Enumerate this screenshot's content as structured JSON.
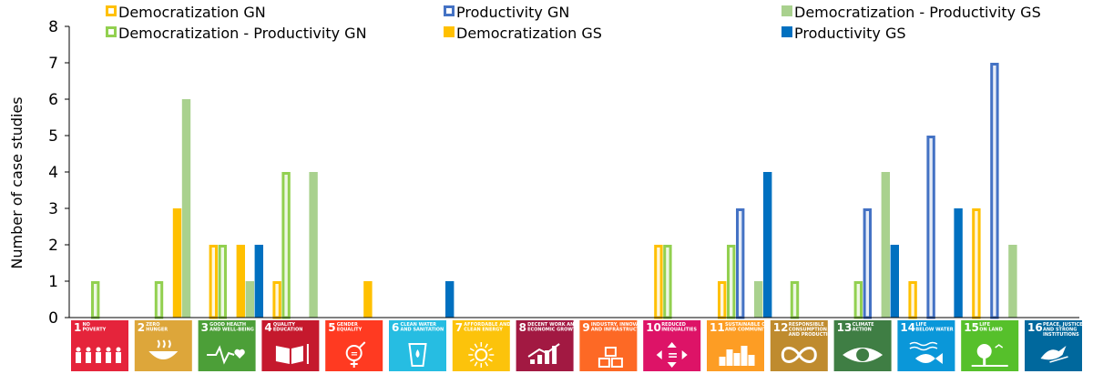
{
  "chart_data": {
    "type": "bar",
    "ylabel": "Number of case studies",
    "ylim": [
      0,
      8
    ],
    "yticks": [
      "0",
      "1",
      "2",
      "3",
      "4",
      "5",
      "6",
      "7",
      "8"
    ],
    "categories": [
      {
        "num": "1",
        "text": [
          "NO",
          "POVERTY"
        ],
        "color": "#e5243b",
        "icon": "family-icon"
      },
      {
        "num": "2",
        "text": [
          "ZERO",
          "HUNGER"
        ],
        "color": "#dda63a",
        "icon": "bowl-icon"
      },
      {
        "num": "3",
        "text": [
          "GOOD HEALTH",
          "AND WELL-BEING"
        ],
        "color": "#4c9f38",
        "icon": "heartbeat-icon"
      },
      {
        "num": "4",
        "text": [
          "QUALITY",
          "EDUCATION"
        ],
        "color": "#c5192d",
        "icon": "book-icon"
      },
      {
        "num": "5",
        "text": [
          "GENDER",
          "EQUALITY"
        ],
        "color": "#ff3a21",
        "icon": "gender-icon"
      },
      {
        "num": "6",
        "text": [
          "CLEAN WATER",
          "AND SANITATION"
        ],
        "color": "#26bde2",
        "icon": "water-glass-icon"
      },
      {
        "num": "7",
        "text": [
          "AFFORDABLE AND",
          "CLEAN ENERGY"
        ],
        "color": "#fcc30b",
        "icon": "sun-icon"
      },
      {
        "num": "8",
        "text": [
          "DECENT WORK AND",
          "ECONOMIC GROWTH"
        ],
        "color": "#a21942",
        "icon": "growth-chart-icon"
      },
      {
        "num": "9",
        "text": [
          "INDUSTRY, INNOVATION",
          "AND INFRASTRUCTURE"
        ],
        "color": "#fd6925",
        "icon": "cubes-icon"
      },
      {
        "num": "10",
        "text": [
          "REDUCED",
          "INEQUALITIES"
        ],
        "color": "#dd1367",
        "icon": "equality-arrows-icon"
      },
      {
        "num": "11",
        "text": [
          "SUSTAINABLE CITIES",
          "AND COMMUNITIES"
        ],
        "color": "#fd9d24",
        "icon": "city-icon"
      },
      {
        "num": "12",
        "text": [
          "RESPONSIBLE",
          "CONSUMPTION",
          "AND PRODUCTION"
        ],
        "color": "#bf8b2e",
        "icon": "infinity-icon"
      },
      {
        "num": "13",
        "text": [
          "CLIMATE",
          "ACTION"
        ],
        "color": "#3f7e44",
        "icon": "eye-icon"
      },
      {
        "num": "14",
        "text": [
          "LIFE",
          "BELOW WATER"
        ],
        "color": "#0a97d9",
        "icon": "fish-icon"
      },
      {
        "num": "15",
        "text": [
          "LIFE",
          "ON LAND"
        ],
        "color": "#56c02b",
        "icon": "tree-icon"
      },
      {
        "num": "16",
        "text": [
          "PEACE, JUSTICE",
          "AND STRONG",
          "INSTITUTIONS"
        ],
        "color": "#00689d",
        "icon": "dove-icon"
      }
    ],
    "series": [
      {
        "name": "Democratization GN",
        "style": "outline",
        "color": "#ffc000",
        "fill": "#fff6dd",
        "values": [
          0,
          0,
          2,
          1,
          0,
          0,
          0,
          0,
          0,
          2,
          1,
          0,
          0,
          1,
          3,
          0
        ]
      },
      {
        "name": "Democratization - Productivity GN",
        "style": "outline",
        "color": "#92d050",
        "fill": "#eef7e4",
        "values": [
          1,
          1,
          2,
          4,
          0,
          0,
          0,
          0,
          0,
          2,
          2,
          1,
          1,
          0,
          0,
          0
        ]
      },
      {
        "name": "Productivity GN",
        "style": "outline",
        "color": "#4472c4",
        "fill": "#e6ecf7",
        "values": [
          0,
          0,
          0,
          0,
          0,
          0,
          0,
          0,
          0,
          0,
          3,
          0,
          3,
          5,
          7,
          0
        ]
      },
      {
        "name": "Democratization GS",
        "style": "solid",
        "color": "#ffc000",
        "values": [
          0,
          3,
          2,
          0,
          1,
          0,
          0,
          0,
          0,
          0,
          0,
          0,
          0,
          0,
          0,
          0
        ]
      },
      {
        "name": "Democratization - Productivity GS",
        "style": "solid",
        "color": "#a9d18e",
        "values": [
          0,
          6,
          1,
          4,
          0,
          0,
          0,
          0,
          0,
          0,
          1,
          0,
          4,
          0,
          2,
          0
        ]
      },
      {
        "name": "Productivity GS",
        "style": "solid",
        "color": "#0070c0",
        "values": [
          0,
          0,
          2,
          0,
          0,
          1,
          0,
          0,
          0,
          0,
          4,
          0,
          2,
          3,
          0,
          0
        ]
      }
    ],
    "legend_order": [
      0,
      2,
      4,
      1,
      3,
      5
    ],
    "legend_position": "top",
    "grid": false
  }
}
